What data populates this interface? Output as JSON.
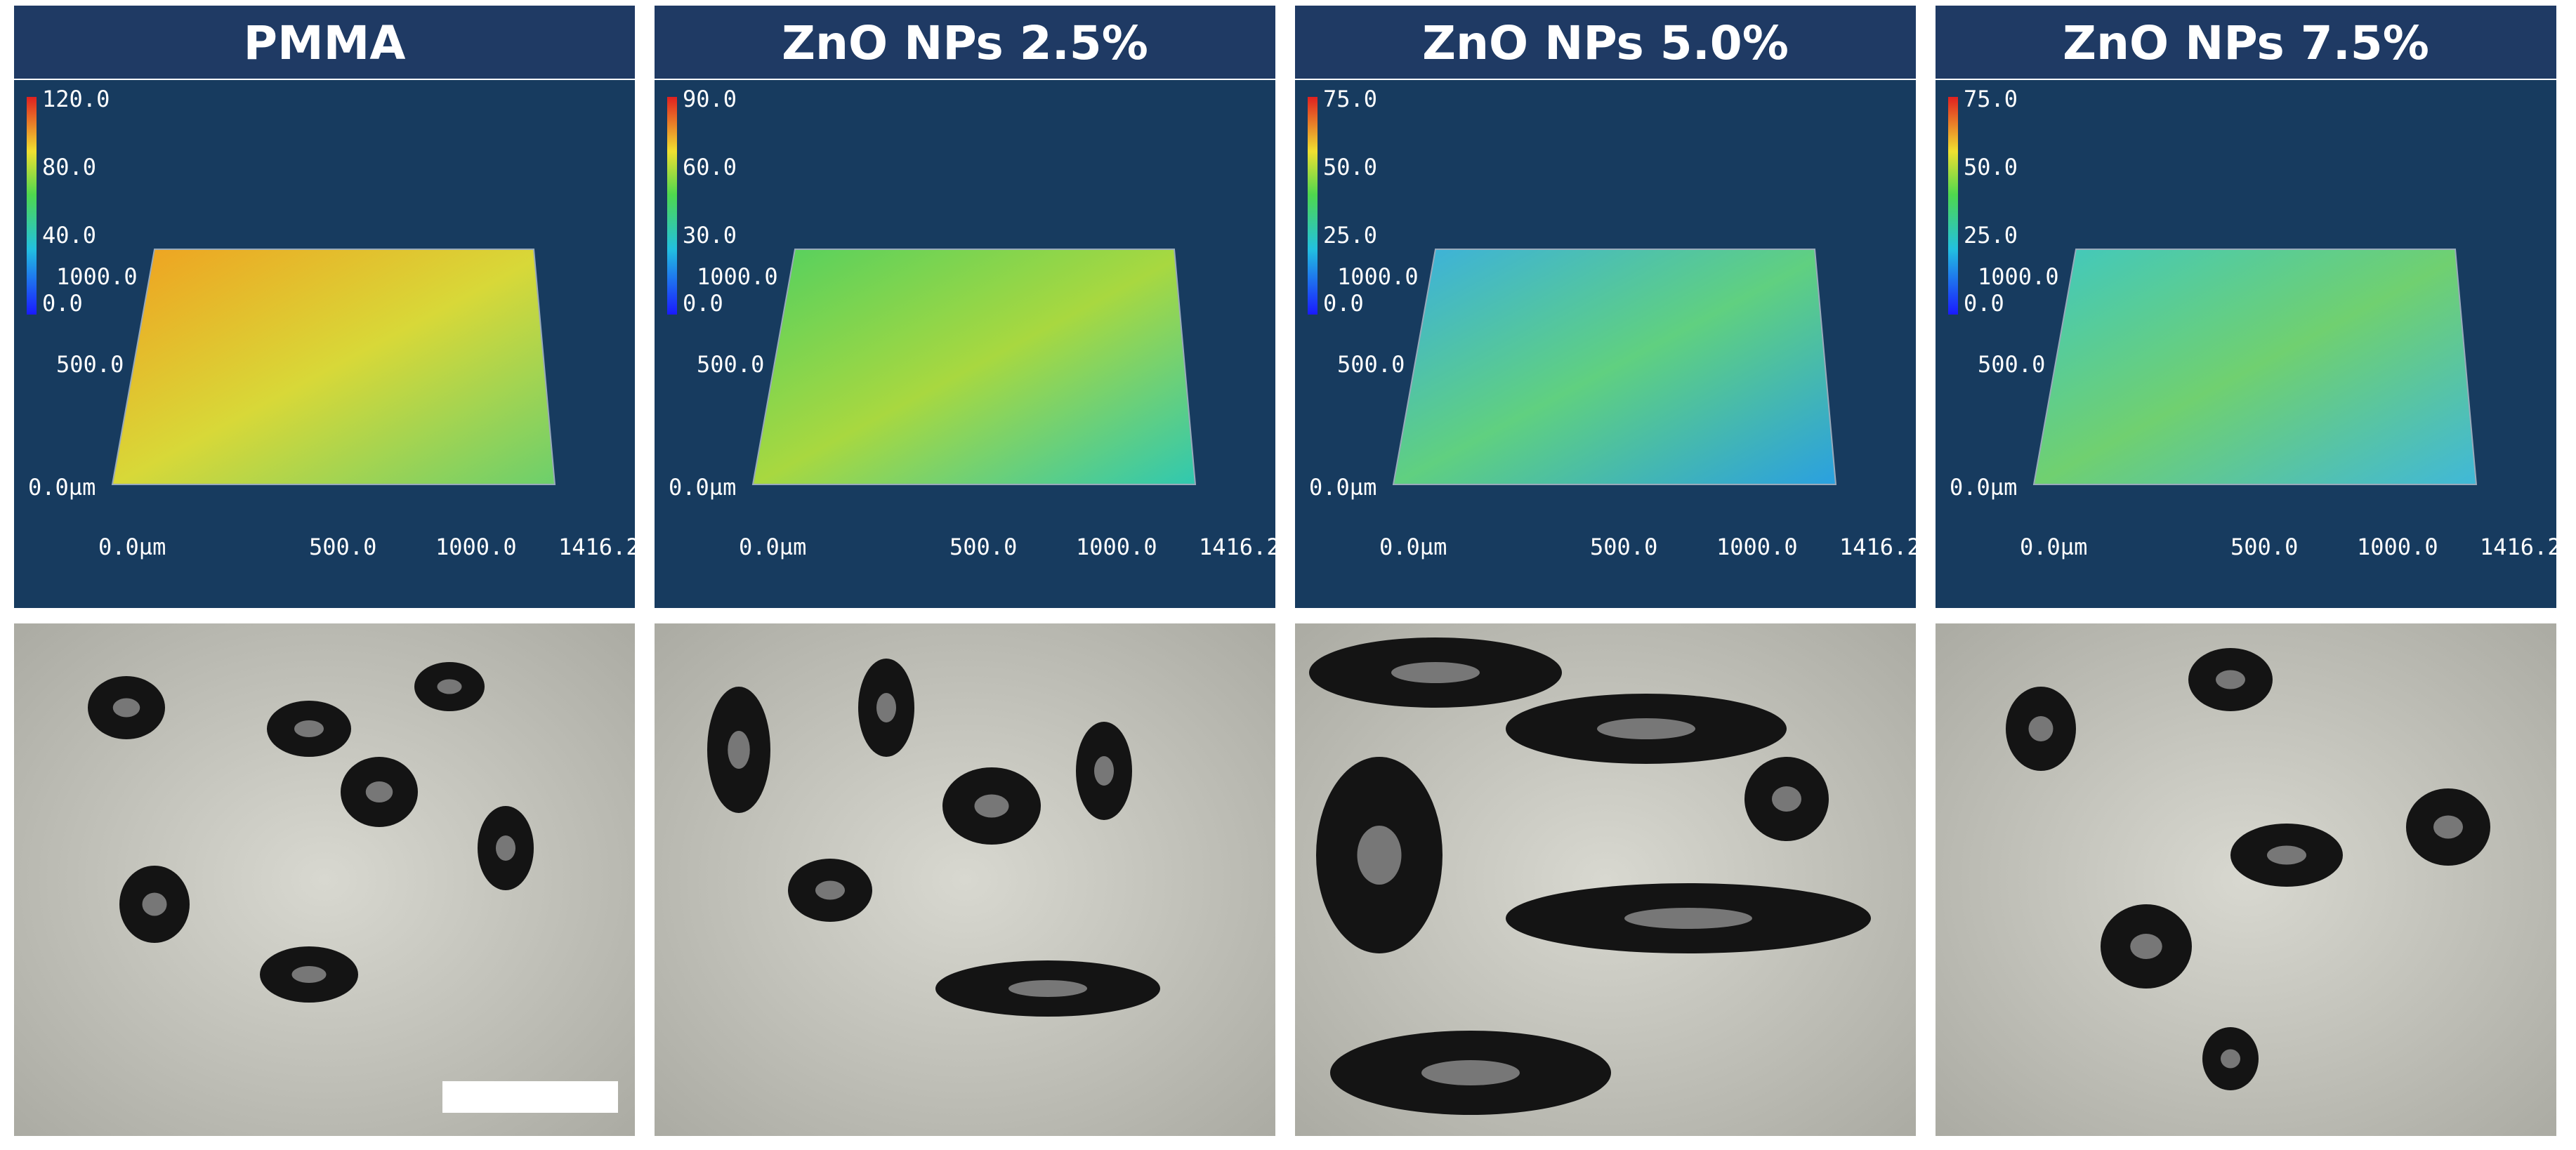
{
  "panels": [
    {
      "title": "PMMA",
      "colorbar_labels": [
        "120.0",
        "80.0",
        "40.0",
        "0.0"
      ],
      "y_labels": [
        "1000.0",
        "500.0",
        "0.0µm"
      ],
      "x_labels": [
        "0.0µm",
        "500.0",
        "1000.0",
        "1416.2"
      ]
    },
    {
      "title": "ZnO NPs 2.5%",
      "colorbar_labels": [
        "90.0",
        "60.0",
        "30.0",
        "0.0"
      ],
      "y_labels": [
        "1000.0",
        "500.0",
        "0.0µm"
      ],
      "x_labels": [
        "0.0µm",
        "500.0",
        "1000.0",
        "1416.2"
      ]
    },
    {
      "title": "ZnO NPs 5.0%",
      "colorbar_labels": [
        "75.0",
        "50.0",
        "25.0",
        "0.0"
      ],
      "y_labels": [
        "1000.0",
        "500.0",
        "0.0µm"
      ],
      "x_labels": [
        "0.0µm",
        "500.0",
        "1000.0",
        "1416.2"
      ]
    },
    {
      "title": "ZnO NPs 7.5%",
      "colorbar_labels": [
        "75.0",
        "50.0",
        "25.0",
        "0.0"
      ],
      "y_labels": [
        "1000.0",
        "500.0",
        "0.0µm"
      ],
      "x_labels": [
        "0.0µm",
        "500.0",
        "1000.0",
        "1416.2"
      ]
    }
  ]
}
